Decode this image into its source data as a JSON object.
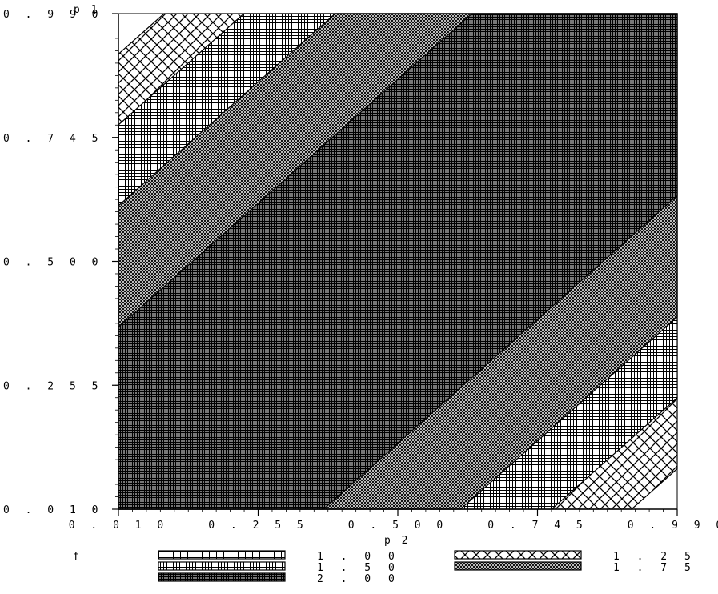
{
  "chart_data": {
    "type": "heatmap",
    "title": "",
    "xlabel": "p 2",
    "ylabel": "p 1",
    "xlim": [
      0.01,
      0.99
    ],
    "ylim": [
      0.01,
      0.99
    ],
    "x_ticks": [
      "0 . 0 1 0",
      "0 . 2 5 5",
      "0 . 5 0 0",
      "0 . 7 4 5",
      "0 . 9 9 0"
    ],
    "y_ticks": [
      "0 . 0 1 0",
      "0 . 2 5 5",
      "0 . 5 0 0",
      "0 . 7 4 5",
      "0 . 9 9 0"
    ],
    "x_tick_values": [
      0.01,
      0.255,
      0.5,
      0.745,
      0.99
    ],
    "y_tick_values": [
      0.01,
      0.255,
      0.5,
      0.745,
      0.99
    ],
    "legend_title": "f",
    "legend_placement": "bottom",
    "levels": [
      {
        "label": "1 . 0 0",
        "value": 1.0,
        "pattern": "grid-coarse"
      },
      {
        "label": "1 . 2 5",
        "value": 1.25,
        "pattern": "crosshatch-wide"
      },
      {
        "label": "1 . 5 0",
        "value": 1.5,
        "pattern": "grid-medium"
      },
      {
        "label": "1 . 7 5",
        "value": 1.75,
        "pattern": "crosshatch-fine"
      },
      {
        "label": "2 . 0 0",
        "value": 2.0,
        "pattern": "grid-dense"
      }
    ],
    "band_distance_thresholds": [
      0.9,
      0.76,
      0.6,
      0.36
    ],
    "grid": false
  }
}
